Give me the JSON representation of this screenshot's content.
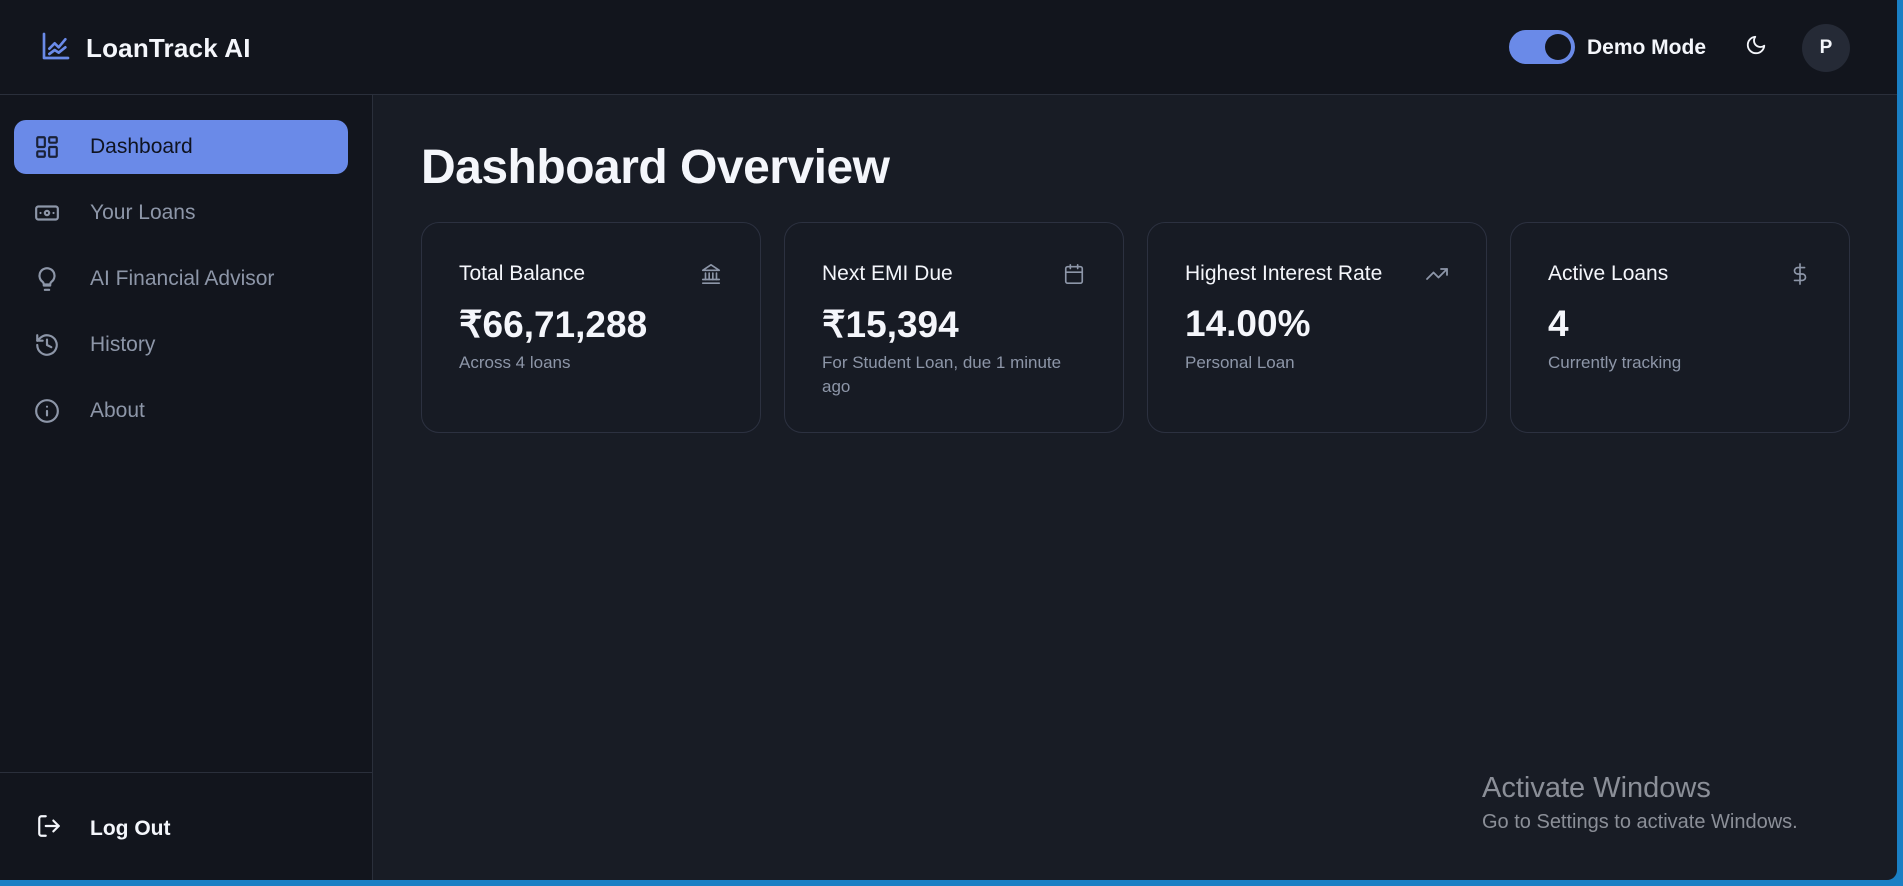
{
  "app": {
    "name": "LoanTrack AI"
  },
  "header": {
    "demo_mode_label": "Demo Mode",
    "demo_mode_on": true,
    "avatar_initial": "P"
  },
  "sidebar": {
    "items": [
      {
        "label": "Dashboard",
        "icon": "dashboard-grid-icon",
        "active": true
      },
      {
        "label": "Your Loans",
        "icon": "banknote-icon"
      },
      {
        "label": "AI Financial Advisor",
        "icon": "lightbulb-icon"
      },
      {
        "label": "History",
        "icon": "history-icon"
      },
      {
        "label": "About",
        "icon": "info-icon"
      }
    ],
    "logout_label": "Log Out"
  },
  "main": {
    "title": "Dashboard Overview",
    "cards": [
      {
        "title": "Total Balance",
        "value": "₹66,71,288",
        "sub": "Across 4 loans",
        "icon": "bank-icon"
      },
      {
        "title": "Next EMI Due",
        "value": "₹15,394",
        "sub": "For Student Loan, due 1 minute ago",
        "icon": "calendar-icon"
      },
      {
        "title": "Highest Interest Rate",
        "value": "14.00%",
        "sub": "Personal Loan",
        "icon": "trending-up-icon"
      },
      {
        "title": "Active Loans",
        "value": "4",
        "sub": "Currently tracking",
        "icon": "dollar-icon"
      }
    ]
  },
  "watermark": {
    "line1": "Activate Windows",
    "line2": "Go to Settings to activate Windows."
  },
  "colors": {
    "accent": "#6a8ae8",
    "background": "#181c25",
    "sidebar": "#12151d",
    "text": "#f4f6fb",
    "muted": "#8d96a8"
  }
}
